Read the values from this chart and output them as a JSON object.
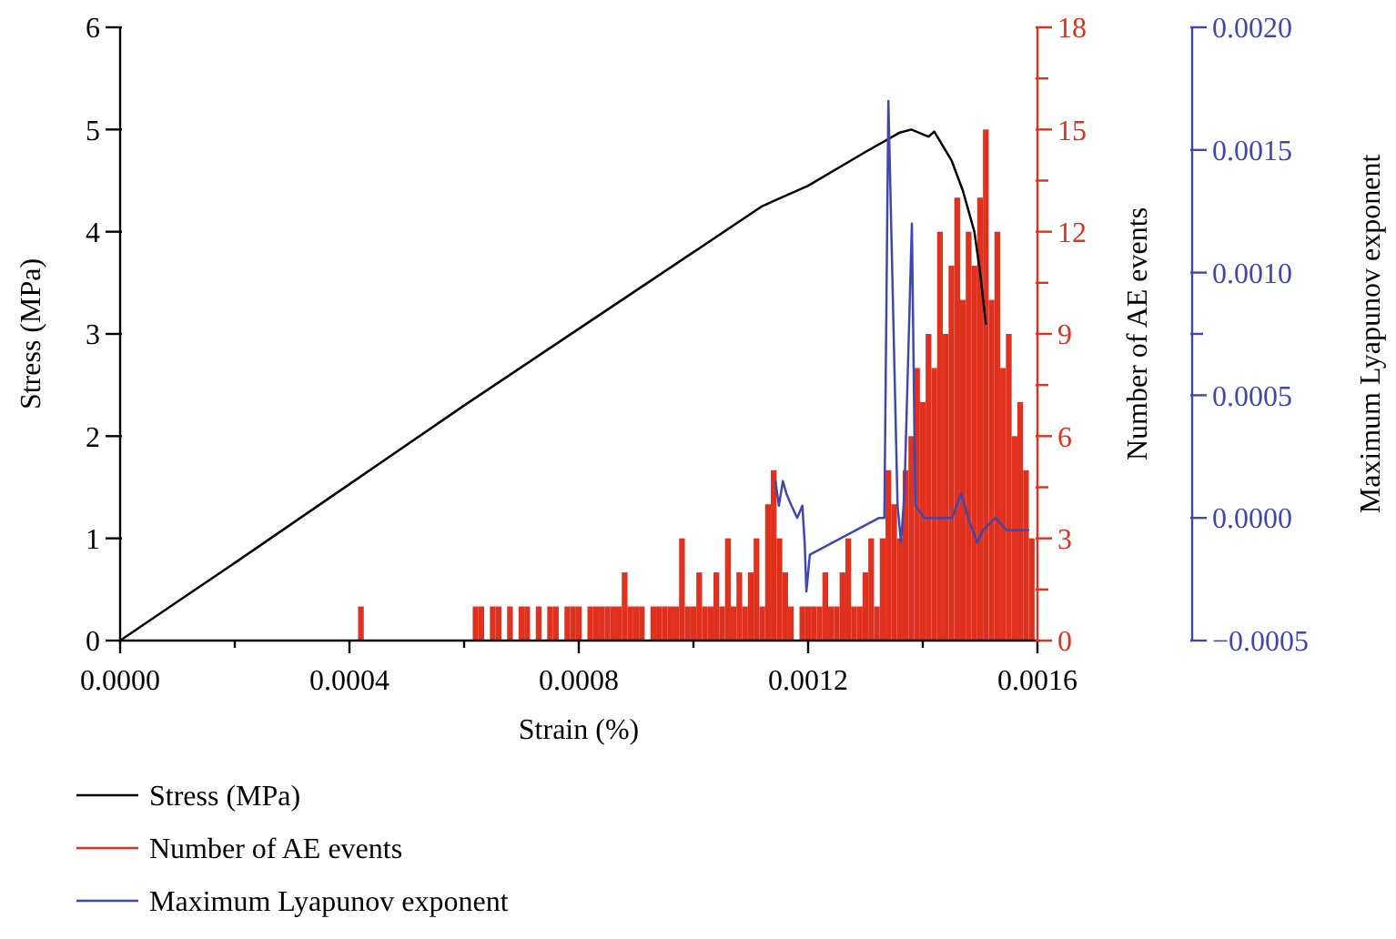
{
  "chart_data": {
    "type": "line",
    "xlabel": "Strain (%)",
    "ylabel": "Stress (MPa)",
    "y2label": "Number of AE events",
    "y3label": "Maximum Lyapunov exponent",
    "xlim": [
      0,
      0.0016
    ],
    "xticks": [
      {
        "value": 0,
        "label": "0.0000"
      },
      {
        "value": 0.0002,
        "label": null
      },
      {
        "value": 0.0004,
        "label": "0.0004"
      },
      {
        "value": 0.0006,
        "label": null
      },
      {
        "value": 0.0008,
        "label": "0.0008"
      },
      {
        "value": 0.001,
        "label": null
      },
      {
        "value": 0.0012,
        "label": "0.0012"
      },
      {
        "value": 0.0014,
        "label": null
      },
      {
        "value": 0.0016,
        "label": "0.0016"
      }
    ],
    "ylim": [
      0,
      6
    ],
    "yticks": [
      0,
      1,
      2,
      3,
      4,
      5,
      6
    ],
    "y2lim": [
      0,
      18
    ],
    "y2ticks": [
      0,
      {
        "value": 1.5,
        "label": null
      },
      3,
      {
        "value": 4.5,
        "label": null
      },
      6,
      {
        "value": 7.5,
        "label": null
      },
      9,
      {
        "value": 10.5,
        "label": null
      },
      12,
      {
        "value": 13.5,
        "label": null
      },
      15,
      {
        "value": 16.5,
        "label": null
      },
      18
    ],
    "y3lim": [
      -0.0005,
      0.002
    ],
    "y3ticks": [
      {
        "value": -0.0005,
        "label": "−0.0005"
      },
      {
        "value": 0,
        "label": "0.0000"
      },
      {
        "value": 0.0005,
        "label": "0.0005"
      },
      {
        "value": 0.00075,
        "label": null
      },
      {
        "value": 0.001,
        "label": "0.0010"
      },
      {
        "value": 0.0015,
        "label": "0.0015"
      },
      {
        "value": 0.002,
        "label": "0.0020"
      }
    ],
    "legend": "bottom left",
    "grid": false,
    "series": [
      {
        "name": "Stress (MPa)",
        "axis": "y",
        "color": "#000000",
        "x": [
          0,
          0.0001,
          0.0002,
          0.0004,
          0.0006,
          0.0008,
          0.001,
          0.00112,
          0.00114,
          0.0012,
          0.0013,
          0.00136,
          0.00138,
          0.00141,
          0.00142,
          0.00145,
          0.00147,
          0.00149,
          0.0015,
          0.00151
        ],
        "values": [
          0,
          0.38,
          0.76,
          1.53,
          2.3,
          3.05,
          3.8,
          4.25,
          4.3,
          4.45,
          4.78,
          4.97,
          5.0,
          4.93,
          4.98,
          4.7,
          4.4,
          4.0,
          3.6,
          3.1
        ]
      },
      {
        "name": "Number of AE events",
        "type": "bar",
        "axis": "y2",
        "color": "#e0301e",
        "x": [
          0.00042,
          0.0006,
          0.00061,
          0.00062,
          0.00063,
          0.00064,
          0.00065,
          0.00066,
          0.00067,
          0.00068,
          0.00069,
          0.0007,
          0.00071,
          0.00072,
          0.00073,
          0.00074,
          0.00075,
          0.00076,
          0.00077,
          0.00078,
          0.00079,
          0.0008,
          0.00081,
          0.00082,
          0.00083,
          0.00084,
          0.00085,
          0.00086,
          0.00087,
          0.00088,
          0.00089,
          0.0009,
          0.00091,
          0.00092,
          0.00093,
          0.00094,
          0.00095,
          0.00096,
          0.00097,
          0.00098,
          0.00099,
          0.001,
          0.00101,
          0.00102,
          0.00103,
          0.00104,
          0.00105,
          0.00106,
          0.00107,
          0.00108,
          0.00109,
          0.0011,
          0.00111,
          0.00112,
          0.00113,
          0.00114,
          0.00115,
          0.00116,
          0.00117,
          0.00118,
          0.00119,
          0.0012,
          0.00121,
          0.00122,
          0.00123,
          0.00124,
          0.00125,
          0.00126,
          0.00127,
          0.00128,
          0.00129,
          0.0013,
          0.00131,
          0.00132,
          0.00133,
          0.00134,
          0.00135,
          0.00136,
          0.00137,
          0.00138,
          0.00139,
          0.0014,
          0.00141,
          0.00142,
          0.00143,
          0.00144,
          0.00145,
          0.00146,
          0.00147,
          0.00148,
          0.00149,
          0.0015,
          0.00151,
          0.00152,
          0.00153,
          0.00154,
          0.00155,
          0.00156,
          0.00157,
          0.00158,
          0.00159
        ],
        "values": [
          1,
          0,
          0,
          1,
          1,
          0,
          1,
          1,
          0,
          1,
          0,
          1,
          1,
          0,
          1,
          0,
          1,
          1,
          0,
          1,
          1,
          1,
          0,
          1,
          1,
          1,
          1,
          1,
          1,
          2,
          1,
          1,
          1,
          0,
          1,
          1,
          1,
          1,
          1,
          3,
          1,
          1,
          2,
          1,
          1,
          2,
          1,
          3,
          1,
          2,
          1,
          2,
          3,
          1,
          4,
          5,
          3,
          2,
          1,
          0,
          1,
          1,
          1,
          1,
          2,
          1,
          1,
          2,
          3,
          1,
          1,
          2,
          3,
          1,
          3,
          5,
          4,
          3,
          5,
          6,
          8,
          7,
          9,
          8,
          12,
          9,
          11,
          13,
          10,
          12,
          11,
          13,
          15,
          10,
          12,
          8,
          9,
          6,
          7,
          5,
          3
        ]
      },
      {
        "name": "Maximum Lyapunov exponent",
        "axis": "y3",
        "color": "#3f48b0",
        "x": [
          0.001143,
          0.001149,
          0.001156,
          0.001162,
          0.001171,
          0.001181,
          0.00119,
          0.001194,
          0.001197,
          0.001203,
          0.001324,
          0.001333,
          0.00134,
          0.001356,
          0.001362,
          0.001368,
          0.001381,
          0.001387,
          0.001403,
          0.001419,
          0.001435,
          0.001451,
          0.001467,
          0.001479,
          0.001495,
          0.001505,
          0.001527,
          0.001546,
          0.001568,
          0.001584
        ],
        "values": [
          0.00015,
          5e-05,
          0.00015,
          0.0001,
          5e-05,
          0,
          5e-05,
          -0.0001,
          -0.0003,
          -0.00015,
          0,
          0,
          0.0017,
          5e-05,
          -0.0001,
          0.0001,
          0.0012,
          5e-05,
          0,
          0,
          0,
          0,
          0.0001,
          0,
          -0.0001,
          -5e-05,
          0,
          -5e-05,
          -5e-05,
          -5e-05
        ]
      }
    ]
  }
}
